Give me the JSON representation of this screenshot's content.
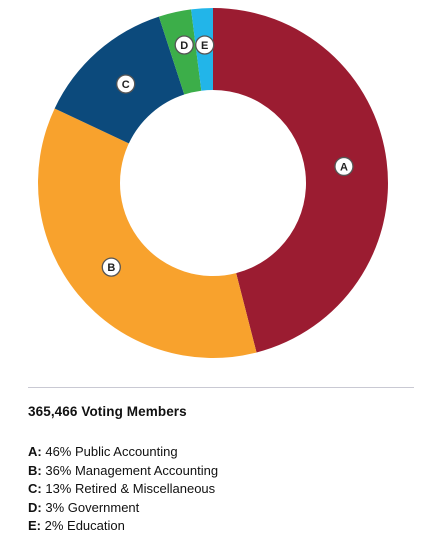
{
  "chart_data": {
    "type": "pie",
    "variant": "donut",
    "slices": [
      {
        "key": "A",
        "value": 46,
        "label": "Public Accounting",
        "color": "#9b1c31"
      },
      {
        "key": "B",
        "value": 36,
        "label": "Management Accounting",
        "color": "#f8a22d"
      },
      {
        "key": "C",
        "value": 13,
        "label": "Retired & Miscellaneous",
        "color": "#0c4a7c"
      },
      {
        "key": "D",
        "value": 3,
        "label": "Government",
        "color": "#3cae49"
      },
      {
        "key": "E",
        "value": 2,
        "label": "Education",
        "color": "#22b5e9"
      }
    ],
    "title": "365,466 Voting Members",
    "legend": [
      {
        "key": "A:",
        "text": "46% Public Accounting"
      },
      {
        "key": "B:",
        "text": "36% Management Accounting"
      },
      {
        "key": "C:",
        "text": "13% Retired & Miscellaneous"
      },
      {
        "key": "D:",
        "text": "3% Government"
      },
      {
        "key": "E:",
        "text": "2% Education"
      }
    ],
    "legend_placement": "bottom"
  }
}
